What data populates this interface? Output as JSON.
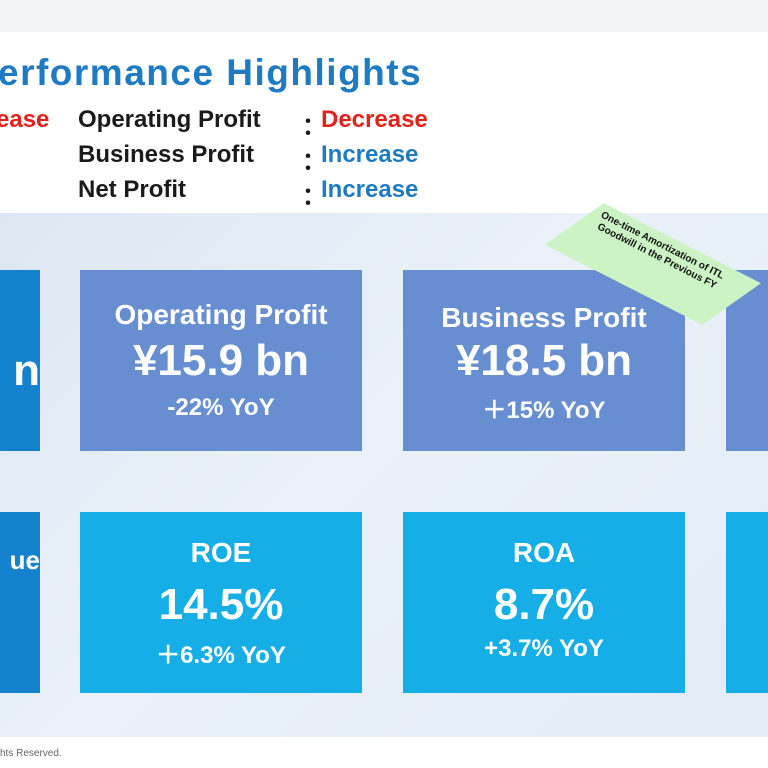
{
  "title": "erformance Highlights",
  "summary": [
    {
      "lead": "ease",
      "label": "Operating Profit",
      "colon": "：",
      "status": "Decrease",
      "status_color": "#e1231b"
    },
    {
      "lead": "",
      "label": "Business Profit",
      "colon": "：",
      "status": "Increase",
      "status_color": "#1f7bc1"
    },
    {
      "lead": "",
      "label": "Net Profit",
      "colon": "：",
      "status": "Increase",
      "status_color": "#1f7bc1"
    }
  ],
  "tiles_row1": {
    "left_partial": {
      "value": "n"
    },
    "operating": {
      "caption": "Operating Profit",
      "value": "¥15.9 bn",
      "change": "-22% YoY"
    },
    "business": {
      "caption": "Business Profit",
      "value": "¥18.5 bn",
      "change": "＋15% YoY"
    }
  },
  "tiles_row2": {
    "left_partial": {
      "caption": "ue"
    },
    "roe": {
      "caption": "ROE",
      "value": "14.5%",
      "change": "＋6.3% YoY"
    },
    "roa": {
      "caption": "ROA",
      "value": "8.7%",
      "change": "+3.7% YoY"
    }
  },
  "note": {
    "text": "One-time Amortization of ITL Goodwill in the Previous FY"
  },
  "footer": "hts Reserved.",
  "colors": {
    "title": "#1f7bc1",
    "tile_row1": "#668ed1",
    "tile_row2": "#16aee6",
    "tile_dark": "#1482cf",
    "note_bg": "#ccf3c4"
  }
}
